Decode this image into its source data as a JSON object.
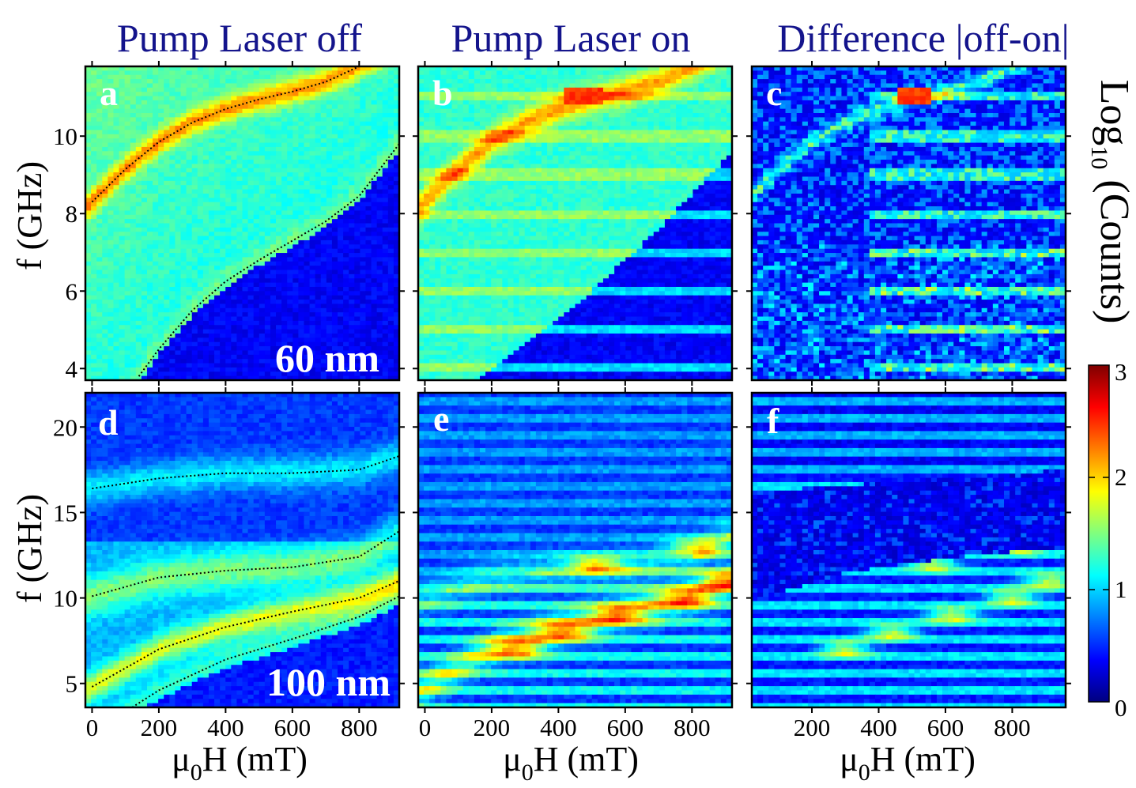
{
  "chart_data": [
    {
      "type": "heatmap",
      "panel_label": "a",
      "column_title": "Pump Laser off",
      "xlabel": "",
      "ylabel": "f (GHz)",
      "xlim": [
        -20,
        920
      ],
      "ylim": [
        3.7,
        11.8
      ],
      "xticks": [
        0,
        200,
        400,
        600,
        800
      ],
      "yticks": [
        4,
        6,
        8,
        10
      ],
      "yticklabels": [
        "4",
        "6",
        "8",
        "10"
      ],
      "thickness_label": "60 nm",
      "fit_curves": [
        {
          "x": [
            0,
            100,
            200,
            300,
            400,
            500,
            600,
            700,
            800
          ],
          "y": [
            8.3,
            9.15,
            9.85,
            10.35,
            10.7,
            10.95,
            11.15,
            11.4,
            11.8
          ]
        },
        {
          "x": [
            140,
            200,
            300,
            400,
            500,
            600,
            700,
            800,
            920
          ],
          "y": [
            3.8,
            4.5,
            5.5,
            6.25,
            6.8,
            7.3,
            7.8,
            8.45,
            9.8
          ]
        }
      ]
    },
    {
      "type": "heatmap",
      "panel_label": "b",
      "column_title": "Pump Laser on",
      "xlabel": "",
      "ylabel": "",
      "xlim": [
        -20,
        920
      ],
      "ylim": [
        3.7,
        11.8
      ],
      "xticks": [
        0,
        200,
        400,
        600,
        800
      ],
      "yticks": [
        4,
        6,
        8,
        10
      ]
    },
    {
      "type": "heatmap",
      "panel_label": "c",
      "column_title": "Difference |off-on|",
      "xlabel": "",
      "ylabel": "",
      "xlim": [
        20,
        960
      ],
      "ylim": [
        3.7,
        11.8
      ],
      "xticks": [
        200,
        400,
        600,
        800
      ],
      "yticks": [
        4,
        6,
        8,
        10
      ]
    },
    {
      "type": "heatmap",
      "panel_label": "d",
      "xlabel": "μ0H (mT)",
      "ylabel": "f (GHz)",
      "xlim": [
        -20,
        920
      ],
      "ylim": [
        3.6,
        22
      ],
      "xticks": [
        0,
        200,
        400,
        600,
        800
      ],
      "xticklabels": [
        "0",
        "200",
        "400",
        "600",
        "800"
      ],
      "yticks": [
        5,
        10,
        15,
        20
      ],
      "yticklabels": [
        "5",
        "10",
        "15",
        "20"
      ],
      "thickness_label": "100 nm",
      "fit_curves": [
        {
          "x": [
            0,
            200,
            400,
            600,
            800,
            920
          ],
          "y": [
            16.4,
            17.0,
            17.3,
            17.3,
            17.5,
            18.3
          ]
        },
        {
          "x": [
            0,
            200,
            400,
            600,
            800,
            920
          ],
          "y": [
            10.1,
            11.2,
            11.6,
            11.8,
            12.4,
            13.9
          ]
        },
        {
          "x": [
            0,
            200,
            400,
            600,
            800,
            920
          ],
          "y": [
            4.8,
            7.0,
            8.3,
            9.2,
            10.0,
            11.0
          ]
        },
        {
          "x": [
            120,
            200,
            400,
            600,
            800,
            920
          ],
          "y": [
            3.6,
            4.6,
            6.4,
            7.6,
            8.9,
            10.1
          ]
        }
      ]
    },
    {
      "type": "heatmap",
      "panel_label": "e",
      "xlabel": "μ0H (mT)",
      "ylabel": "",
      "xlim": [
        -20,
        920
      ],
      "ylim": [
        3.6,
        22
      ],
      "xticks": [
        0,
        200,
        400,
        600,
        800
      ],
      "xticklabels": [
        "0",
        "200",
        "400",
        "600",
        "800"
      ],
      "yticks": [
        5,
        10,
        15,
        20
      ]
    },
    {
      "type": "heatmap",
      "panel_label": "f",
      "xlabel": "μ0H (mT)",
      "ylabel": "",
      "xlim": [
        20,
        960
      ],
      "ylim": [
        3.6,
        22
      ],
      "xticks": [
        200,
        400,
        600,
        800
      ],
      "xticklabels": [
        "200",
        "400",
        "600",
        "800"
      ],
      "yticks": [
        5,
        10,
        15,
        20
      ]
    }
  ],
  "colorbar": {
    "title": "Log10 (Counts)",
    "title_main": "Log",
    "title_sub": "10",
    "title_rest": " (Counts)",
    "min": 0,
    "max": 3,
    "ticks": [
      "0",
      "1",
      "2",
      "3"
    ],
    "colormap": "jet",
    "colors": [
      "#00007f",
      "#0000ff",
      "#007fff",
      "#00ffff",
      "#7fff7f",
      "#ffff00",
      "#ff7f00",
      "#ff0000",
      "#7f0000"
    ]
  },
  "axis_label_parts": {
    "mu": "μ",
    "sub": "0",
    "rest": "H (mT)"
  }
}
